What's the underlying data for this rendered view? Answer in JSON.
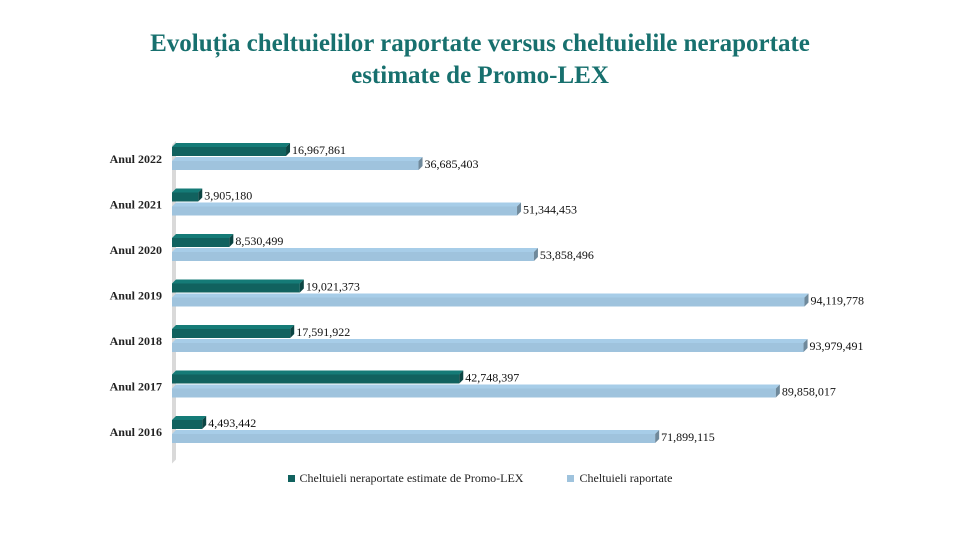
{
  "chart_data": {
    "type": "bar",
    "orientation": "horizontal",
    "title_lines": [
      "Evoluția cheltuielilor raportate versus cheltuielile neraportate",
      "estimate de Promo-LEX"
    ],
    "categories": [
      "Anul 2022",
      "Anul 2021",
      "Anul 2020",
      "Anul 2019",
      "Anul 2018",
      "Anul 2017",
      "Anul 2016"
    ],
    "series": [
      {
        "name": "Cheltuieli neraportate estimate de Promo-LEX",
        "color": "#11625f",
        "values": [
          16967861,
          3905180,
          8530499,
          19021373,
          17591922,
          42748397,
          4493442
        ],
        "labels": [
          "16,967,861",
          "3,905,180",
          "8,530,499",
          "19,021,373",
          "17,591,922",
          "42,748,397",
          "4,493,442"
        ]
      },
      {
        "name": "Cheltuieli raportate",
        "color": "#9fc3dd",
        "values": [
          36685403,
          51344453,
          53858496,
          94119778,
          93979491,
          89858017,
          71899115
        ],
        "labels": [
          "36,685,403",
          "51,344,453",
          "53,858,496",
          "94,119,778",
          "93,979,491",
          "89,858,017",
          "71,899,115"
        ]
      }
    ],
    "xlim": [
      0,
      100000000
    ],
    "grid": false,
    "legend_position": "bottom"
  }
}
